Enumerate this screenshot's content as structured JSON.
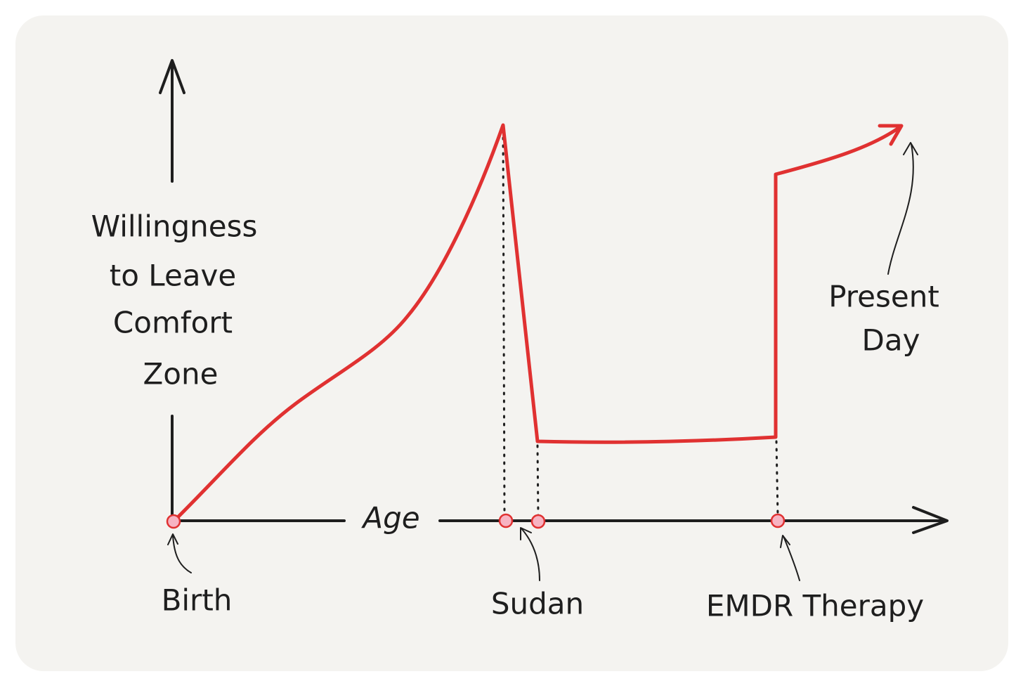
{
  "y_axis_label": [
    "Willingness",
    "to Leave",
    "Comfort",
    "Zone"
  ],
  "x_axis_label": "Age",
  "annotations": {
    "birth": "Birth",
    "sudan": "Sudan",
    "emdr": "EMDR Therapy",
    "present_day": [
      "Present",
      "Day"
    ]
  }
}
